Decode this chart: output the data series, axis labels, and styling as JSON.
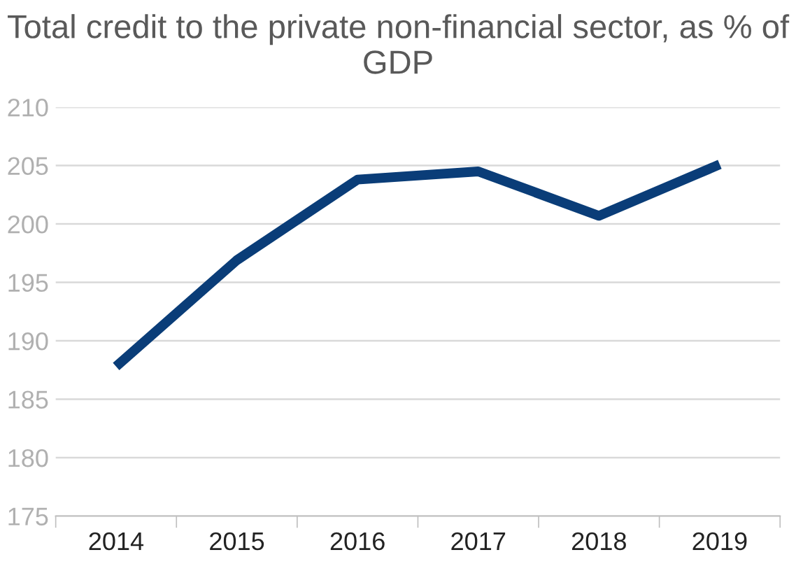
{
  "chart_data": {
    "type": "line",
    "title": "Total credit to the private non-financial sector, as % of GDP",
    "categories": [
      "2014",
      "2015",
      "2016",
      "2017",
      "2018",
      "2019"
    ],
    "series": [
      {
        "color": "#0a3d78",
        "values": [
          187.8,
          196.9,
          203.8,
          204.5,
          200.7,
          205.1
        ]
      }
    ],
    "ylim": [
      175,
      210
    ],
    "yticks": [
      175,
      180,
      185,
      190,
      195,
      200,
      205,
      210
    ],
    "grid": "y",
    "marker": "none",
    "line_style": "solid"
  }
}
